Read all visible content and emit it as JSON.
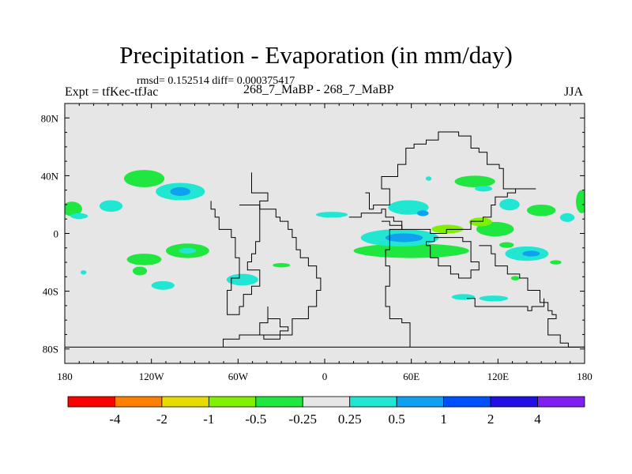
{
  "title": "Precipitation - Evaporation (in mm/day)",
  "stats_line": "rmsd= 0.152514 diff= 0.000375417",
  "experiment_label": "Expt = tfKec-tfJac",
  "run_label": "268_7_MaBP - 268_7_MaBP",
  "season_label": "JJA",
  "chart_data": {
    "type": "heatmap",
    "projection": "cylindrical-equidistant",
    "xlim": [
      -180,
      180
    ],
    "ylim": [
      -90,
      90
    ],
    "x_ticks": [
      {
        "value": -180,
        "label": "180"
      },
      {
        "value": -120,
        "label": "120W"
      },
      {
        "value": -60,
        "label": "60W"
      },
      {
        "value": 0,
        "label": "0"
      },
      {
        "value": 60,
        "label": "60E"
      },
      {
        "value": 120,
        "label": "120E"
      },
      {
        "value": 180,
        "label": "180"
      }
    ],
    "y_ticks": [
      {
        "value": 80,
        "label": "80N"
      },
      {
        "value": 40,
        "label": "40N"
      },
      {
        "value": 0,
        "label": "0"
      },
      {
        "value": -40,
        "label": "40S"
      },
      {
        "value": -80,
        "label": "80S"
      }
    ],
    "background_color": "#e6e6e6",
    "colorbar": {
      "levels": [
        "-4",
        "-2",
        "-1",
        "-0.5",
        "-0.25",
        "0.25",
        "0.5",
        "1",
        "2",
        "4"
      ],
      "colors": [
        "#ff0000",
        "#ff8000",
        "#e6dc00",
        "#80f000",
        "#20e640",
        "#e6e6e6",
        "#20e6d2",
        "#10a0f0",
        "#0050ff",
        "#2010e6",
        "#8020f0"
      ]
    },
    "anomalies": [
      {
        "lon": -125,
        "lat": 38,
        "rlon": 14,
        "rlat": 6,
        "color": "#20e640"
      },
      {
        "lon": -100,
        "lat": 29,
        "rlon": 17,
        "rlat": 6,
        "color": "#20e6d2"
      },
      {
        "lon": -100,
        "lat": 29,
        "rlon": 7,
        "rlat": 3,
        "color": "#10a0f0"
      },
      {
        "lon": -148,
        "lat": 19,
        "rlon": 8,
        "rlat": 4,
        "color": "#20e6d2"
      },
      {
        "lon": -175,
        "lat": 17,
        "rlon": 7,
        "rlat": 5,
        "color": "#20e640"
      },
      {
        "lon": -170,
        "lat": 12,
        "rlon": 6,
        "rlat": 2,
        "color": "#20e6d2"
      },
      {
        "lon": -95,
        "lat": -12,
        "rlon": 15,
        "rlat": 5,
        "color": "#20e640"
      },
      {
        "lon": -95,
        "lat": -12,
        "rlon": 6,
        "rlat": 2,
        "color": "#20e6d2"
      },
      {
        "lon": -125,
        "lat": -18,
        "rlon": 12,
        "rlat": 4,
        "color": "#20e640"
      },
      {
        "lon": -128,
        "lat": -26,
        "rlon": 5,
        "rlat": 3,
        "color": "#20e640"
      },
      {
        "lon": -112,
        "lat": -36,
        "rlon": 8,
        "rlat": 3,
        "color": "#20e6d2"
      },
      {
        "lon": -57,
        "lat": -32,
        "rlon": 11,
        "rlat": 4,
        "color": "#20e6d2"
      },
      {
        "lon": -30,
        "lat": -22,
        "rlon": 6,
        "rlat": 1.5,
        "color": "#20e640"
      },
      {
        "lon": 5,
        "lat": 13,
        "rlon": 11,
        "rlat": 2,
        "color": "#20e6d2"
      },
      {
        "lon": 58,
        "lat": 18,
        "rlon": 14,
        "rlat": 5,
        "color": "#20e6d2"
      },
      {
        "lon": 68,
        "lat": 14,
        "rlon": 4,
        "rlat": 2,
        "color": "#10a0f0"
      },
      {
        "lon": 104,
        "lat": 36,
        "rlon": 14,
        "rlat": 4,
        "color": "#20e640"
      },
      {
        "lon": 110,
        "lat": 31,
        "rlon": 6,
        "rlat": 2,
        "color": "#20e6d2"
      },
      {
        "lon": 128,
        "lat": 20,
        "rlon": 7,
        "rlat": 4,
        "color": "#20e6d2"
      },
      {
        "lon": 60,
        "lat": -12,
        "rlon": 40,
        "rlat": 5,
        "color": "#20e640"
      },
      {
        "lon": 52,
        "lat": -3,
        "rlon": 27,
        "rlat": 6,
        "color": "#20e6d2"
      },
      {
        "lon": 55,
        "lat": -3,
        "rlon": 13,
        "rlat": 3,
        "color": "#10a0f0"
      },
      {
        "lon": 118,
        "lat": 3,
        "rlon": 13,
        "rlat": 5,
        "color": "#20e640"
      },
      {
        "lon": 108,
        "lat": 8,
        "rlon": 8,
        "rlat": 3,
        "color": "#80f000"
      },
      {
        "lon": 85,
        "lat": 3,
        "rlon": 11,
        "rlat": 3,
        "color": "#80f000"
      },
      {
        "lon": 150,
        "lat": 16,
        "rlon": 10,
        "rlat": 4,
        "color": "#20e640"
      },
      {
        "lon": 178,
        "lat": 22,
        "rlon": 4,
        "rlat": 8,
        "color": "#20e640"
      },
      {
        "lon": 168,
        "lat": 11,
        "rlon": 5,
        "rlat": 3,
        "color": "#20e6d2"
      },
      {
        "lon": 140,
        "lat": -14,
        "rlon": 15,
        "rlat": 5,
        "color": "#20e6d2"
      },
      {
        "lon": 143,
        "lat": -14,
        "rlon": 6,
        "rlat": 2,
        "color": "#10a0f0"
      },
      {
        "lon": 126,
        "lat": -8,
        "rlon": 5,
        "rlat": 2,
        "color": "#20e640"
      },
      {
        "lon": 160,
        "lat": -20,
        "rlon": 4,
        "rlat": 1.5,
        "color": "#20e640"
      },
      {
        "lon": 96,
        "lat": -44,
        "rlon": 8,
        "rlat": 2,
        "color": "#20e6d2"
      },
      {
        "lon": 117,
        "lat": -45,
        "rlon": 10,
        "rlat": 2,
        "color": "#20e6d2"
      },
      {
        "lon": 132,
        "lat": -31,
        "rlon": 3,
        "rlat": 1.5,
        "color": "#20e640"
      },
      {
        "lon": -167,
        "lat": -27,
        "rlon": 2,
        "rlat": 1.5,
        "color": "#20e6d2"
      },
      {
        "lon": 72,
        "lat": 38,
        "rlon": 2,
        "rlat": 1.5,
        "color": "#20e6d2"
      }
    ],
    "coastlines": [
      [
        [
          -180,
          -80
        ],
        [
          180,
          -80
        ]
      ],
      [
        [
          -50,
          42
        ],
        [
          -50,
          28
        ],
        [
          -40,
          22
        ],
        [
          -44,
          12
        ],
        [
          -44,
          -5
        ],
        [
          -48,
          -14
        ],
        [
          -52,
          -20
        ],
        [
          -54,
          -26
        ],
        [
          -45,
          -36
        ],
        [
          -52,
          -42
        ],
        [
          -56,
          -50
        ],
        [
          -58,
          -56
        ],
        [
          -66,
          -56
        ],
        [
          -68,
          -46
        ],
        [
          -67,
          -38
        ],
        [
          -64,
          -30
        ],
        [
          -60,
          -16
        ],
        [
          -62,
          -4
        ],
        [
          -66,
          4
        ],
        [
          -72,
          10
        ],
        [
          -76,
          16
        ],
        [
          -80,
          22
        ]
      ],
      [
        [
          -58,
          20
        ],
        [
          -48,
          20
        ],
        [
          -44,
          16
        ],
        [
          -34,
          12
        ],
        [
          -30,
          8
        ],
        [
          -26,
          4
        ],
        [
          -22,
          -3
        ],
        [
          -20,
          -10
        ],
        [
          -16,
          -18
        ],
        [
          -11,
          -22
        ],
        [
          -6,
          -30
        ],
        [
          -2,
          -40
        ],
        [
          -6,
          -50
        ],
        [
          -12,
          -60
        ],
        [
          -22,
          -70
        ],
        [
          -46,
          -70
        ],
        [
          -60,
          -72
        ],
        [
          -64,
          -74
        ],
        [
          -70,
          -78
        ],
        [
          -70,
          -80
        ]
      ],
      [
        [
          -40,
          -52
        ],
        [
          -38,
          -60
        ],
        [
          -32,
          -66
        ],
        [
          -24,
          -68
        ],
        [
          -30,
          -72
        ],
        [
          -42,
          -70
        ],
        [
          -44,
          -62
        ],
        [
          -40,
          -52
        ]
      ],
      [
        [
          18,
          10
        ],
        [
          24,
          14
        ],
        [
          32,
          14
        ],
        [
          38,
          18
        ],
        [
          42,
          12
        ],
        [
          48,
          8
        ],
        [
          54,
          2
        ],
        [
          46,
          -12
        ],
        [
          42,
          -22
        ],
        [
          44,
          -36
        ],
        [
          42,
          -52
        ],
        [
          46,
          -58
        ],
        [
          54,
          -62
        ],
        [
          58,
          -78
        ],
        [
          60,
          -80
        ]
      ],
      [
        [
          28,
          28
        ],
        [
          30,
          18
        ],
        [
          34,
          20
        ],
        [
          40,
          20
        ],
        [
          44,
          30
        ],
        [
          40,
          40
        ],
        [
          50,
          48
        ],
        [
          56,
          58
        ],
        [
          62,
          62
        ],
        [
          70,
          66
        ],
        [
          80,
          70
        ],
        [
          94,
          68
        ],
        [
          100,
          60
        ],
        [
          104,
          58
        ],
        [
          108,
          56
        ],
        [
          112,
          48
        ],
        [
          120,
          44
        ],
        [
          124,
          40
        ],
        [
          124,
          32
        ],
        [
          130,
          30
        ],
        [
          134,
          32
        ]
      ],
      [
        [
          40,
          8
        ],
        [
          46,
          6
        ],
        [
          54,
          4
        ],
        [
          60,
          2
        ],
        [
          72,
          0
        ],
        [
          84,
          2
        ],
        [
          96,
          4
        ],
        [
          102,
          8
        ],
        [
          110,
          12
        ],
        [
          114,
          20
        ],
        [
          118,
          24
        ],
        [
          126,
          28
        ],
        [
          132,
          30
        ],
        [
          138,
          32
        ],
        [
          146,
          32
        ],
        [
          146,
          30
        ]
      ],
      [
        [
          70,
          -8
        ],
        [
          74,
          -18
        ],
        [
          80,
          -22
        ],
        [
          86,
          -28
        ],
        [
          92,
          -30
        ],
        [
          100,
          -26
        ],
        [
          108,
          -26
        ],
        [
          108,
          -20
        ],
        [
          102,
          -14
        ],
        [
          100,
          -6
        ],
        [
          96,
          -2
        ],
        [
          88,
          -4
        ],
        [
          82,
          -2
        ],
        [
          76,
          -6
        ],
        [
          70,
          -8
        ]
      ],
      [
        [
          108,
          -8
        ],
        [
          116,
          -14
        ],
        [
          118,
          -22
        ],
        [
          126,
          -28
        ],
        [
          134,
          -30
        ],
        [
          142,
          -40
        ],
        [
          150,
          -48
        ],
        [
          154,
          -54
        ],
        [
          158,
          -56
        ],
        [
          160,
          -60
        ],
        [
          156,
          -70
        ],
        [
          162,
          -76
        ],
        [
          170,
          -80
        ],
        [
          180,
          -80
        ]
      ],
      [
        [
          98,
          -46
        ],
        [
          104,
          -50
        ],
        [
          110,
          -52
        ],
        [
          114,
          -50
        ],
        [
          122,
          -52
        ],
        [
          130,
          -50
        ],
        [
          140,
          -54
        ],
        [
          144,
          -52
        ],
        [
          152,
          -48
        ],
        [
          152,
          -44
        ]
      ]
    ]
  }
}
